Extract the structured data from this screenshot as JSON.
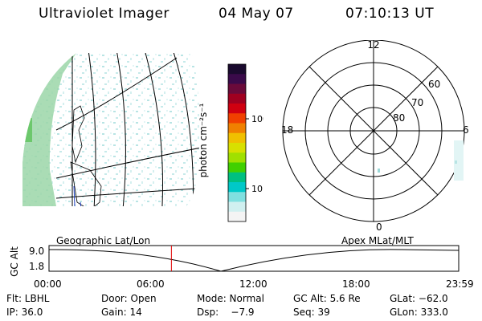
{
  "header": {
    "instrument": "Ultraviolet Imager",
    "date": "04 May 07",
    "time": "07:10:13 UT"
  },
  "colorbar": {
    "unit_label": "photon cm⁻²s⁻¹",
    "ticks": [
      "100",
      "10"
    ],
    "colors": [
      "#1a0a2e",
      "#3a0a4a",
      "#6a0a3a",
      "#a00020",
      "#d00010",
      "#f04000",
      "#f08000",
      "#f0c000",
      "#d8e000",
      "#a0e000",
      "#40d000",
      "#00c080",
      "#00c8c8",
      "#80e0e0",
      "#d0f0f0",
      "#f4f4f4"
    ]
  },
  "polar": {
    "mlt_labels": {
      "top": "12",
      "left": "18",
      "right": "6",
      "bottom": "0"
    },
    "mlat_labels": [
      "60",
      "70",
      "80"
    ]
  },
  "timeline": {
    "left_label": "Geographic Lat/Lon",
    "right_label": "Apex MLat/MLT",
    "axis_label": "GC Alt",
    "y_ticks": [
      "9.0",
      "1.8"
    ],
    "x_ticks": [
      "00:00",
      "06:00",
      "12:00",
      "18:00",
      "23:59"
    ],
    "current_time_hours": 7.17,
    "marker_color": "#e00000"
  },
  "info": {
    "row1": [
      "Flt: LBHL",
      "Door: Open",
      "Mode: Normal",
      "GC Alt: 5.6 Re",
      "GLat: −62.0"
    ],
    "row2": [
      "IP: 36.0",
      "Gain: 14",
      "Dsp:    −7.9",
      "Seq: 39",
      "GLon: 333.0"
    ]
  }
}
